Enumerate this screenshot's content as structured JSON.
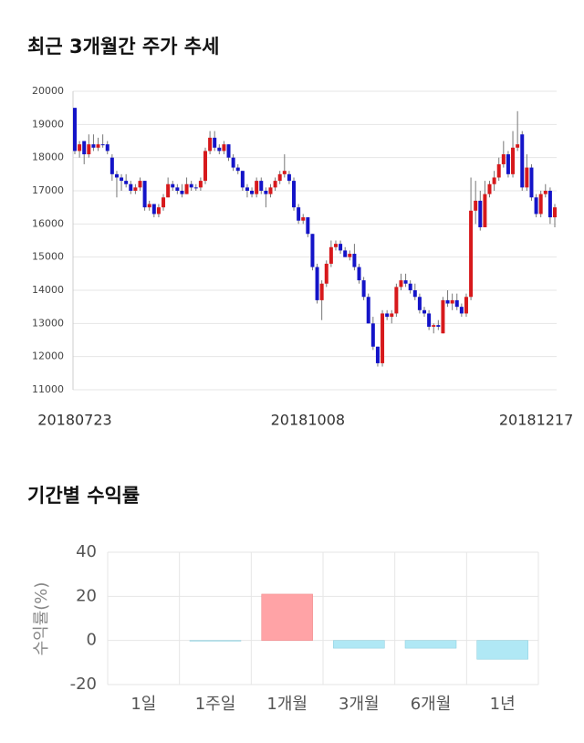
{
  "chart_data": [
    {
      "type": "candlestick",
      "title": "최근 3개월간 주가 추세",
      "categories": [
        "20180723",
        null,
        null,
        null,
        null,
        null,
        null,
        null,
        null,
        null,
        null,
        null,
        null,
        null,
        null,
        null,
        null,
        null,
        null,
        null,
        null,
        null,
        null,
        null,
        null,
        null,
        null,
        null,
        null,
        null,
        null,
        null,
        null,
        null,
        null,
        null,
        null,
        null,
        null,
        null,
        null,
        null,
        null,
        null,
        null,
        null,
        null,
        null,
        null,
        null,
        "20181008",
        null,
        null,
        null,
        null,
        null,
        null,
        null,
        null,
        null,
        null,
        null,
        null,
        null,
        null,
        null,
        null,
        null,
        null,
        null,
        null,
        null,
        null,
        null,
        null,
        null,
        null,
        null,
        null,
        null,
        null,
        null,
        null,
        null,
        null,
        null,
        null,
        null,
        null,
        null,
        null,
        null,
        null,
        null,
        null,
        null,
        null,
        null,
        null,
        "20181217",
        null,
        null,
        null,
        null
      ],
      "open": [
        19500,
        18200,
        18500,
        18100,
        18400,
        18300,
        18400,
        18400,
        18000,
        17500,
        17400,
        17300,
        17200,
        17000,
        17100,
        17300,
        16500,
        16600,
        16300,
        16500,
        16800,
        17200,
        17100,
        17000,
        16900,
        17200,
        17100,
        17100,
        17300,
        18200,
        18600,
        18300,
        18200,
        18400,
        18000,
        17700,
        17600,
        17100,
        17000,
        16900,
        17300,
        17000,
        16900,
        17100,
        17300,
        17500,
        17500,
        17300,
        16500,
        16100,
        16200,
        15700,
        14700,
        13700,
        14200,
        14800,
        15300,
        15400,
        15200,
        15000,
        15100,
        14700,
        14300,
        13800,
        13000,
        12300,
        11800,
        13300,
        13200,
        13300,
        14100,
        14300,
        14200,
        14000,
        13800,
        13400,
        13300,
        12900,
        12950,
        12700,
        13700,
        13600,
        13700,
        13500,
        13300,
        13800,
        16400,
        16700,
        15900,
        16900,
        17200,
        17400,
        17800,
        18100,
        17500,
        18300,
        18700,
        17100,
        17700,
        16800,
        16300,
        16900,
        17000,
        16200
      ],
      "high": [
        19500,
        18500,
        18500,
        18700,
        18700,
        18600,
        18700,
        18500,
        18100,
        17600,
        17500,
        17500,
        17300,
        17200,
        17400,
        17300,
        16700,
        16600,
        16600,
        16900,
        17400,
        17300,
        17200,
        17200,
        17400,
        17300,
        17200,
        17400,
        18300,
        18800,
        18800,
        18400,
        18500,
        18400,
        18100,
        17800,
        17600,
        17200,
        17100,
        17400,
        17400,
        17100,
        17200,
        17400,
        17600,
        18100,
        17600,
        17400,
        16600,
        16300,
        16200,
        15700,
        14800,
        14300,
        14900,
        15500,
        15500,
        15500,
        15300,
        15200,
        15400,
        14800,
        14400,
        13900,
        13200,
        12300,
        13400,
        13400,
        13400,
        14200,
        14500,
        14500,
        14300,
        14200,
        13900,
        13500,
        13400,
        13000,
        13100,
        13800,
        14000,
        13900,
        13900,
        13600,
        13900,
        17400,
        17300,
        17000,
        17300,
        17300,
        17600,
        18000,
        18500,
        18200,
        18800,
        19400,
        18800,
        18100,
        17800,
        16900,
        17000,
        17200,
        17100,
        16600
      ],
      "low": [
        18100,
        18000,
        17800,
        18000,
        18200,
        18200,
        18300,
        18100,
        17300,
        16800,
        17000,
        17100,
        16900,
        16900,
        17000,
        16400,
        16400,
        16200,
        16200,
        16400,
        16800,
        17000,
        16900,
        16800,
        16900,
        17000,
        17000,
        17000,
        17200,
        18100,
        18200,
        18100,
        18100,
        17900,
        17600,
        17500,
        17000,
        16800,
        16800,
        16800,
        16900,
        16500,
        16800,
        17000,
        17200,
        17400,
        17200,
        16400,
        16000,
        16000,
        15600,
        14600,
        13600,
        13100,
        14100,
        14700,
        15200,
        15100,
        15000,
        14900,
        14600,
        14200,
        13700,
        13000,
        12200,
        11700,
        11700,
        13100,
        13000,
        13200,
        14000,
        14100,
        13900,
        13700,
        13300,
        13200,
        12800,
        12700,
        12800,
        12700,
        13500,
        13400,
        13400,
        13200,
        13200,
        13700,
        16000,
        15800,
        15900,
        16800,
        17000,
        17300,
        17700,
        17400,
        17400,
        18200,
        17000,
        17000,
        16700,
        16200,
        16200,
        16800,
        16000,
        15900
      ],
      "close": [
        18200,
        18400,
        18100,
        18400,
        18300,
        18400,
        18400,
        18200,
        17500,
        17400,
        17300,
        17200,
        17000,
        17100,
        17300,
        16500,
        16600,
        16300,
        16500,
        16800,
        17200,
        17100,
        17000,
        16900,
        17200,
        17100,
        17100,
        17300,
        18200,
        18600,
        18300,
        18200,
        18400,
        18000,
        17700,
        17600,
        17100,
        17000,
        16900,
        17300,
        17000,
        16900,
        17100,
        17300,
        17500,
        17600,
        17300,
        16500,
        16100,
        16200,
        15700,
        14700,
        13700,
        14200,
        14800,
        15300,
        15400,
        15200,
        15000,
        15100,
        14700,
        14300,
        13800,
        13000,
        12300,
        11800,
        13300,
        13200,
        13300,
        14100,
        14300,
        14200,
        14000,
        13800,
        13400,
        13300,
        12900,
        12950,
        12900,
        13700,
        13600,
        13700,
        13500,
        13300,
        13800,
        16400,
        16700,
        15900,
        16900,
        17200,
        17400,
        17800,
        18100,
        17500,
        18300,
        18400,
        17100,
        17700,
        16800,
        16300,
        16900,
        17000,
        16200,
        16500
      ],
      "up_color": "#d7191c",
      "down_color": "#1414c8",
      "ylim": [
        11000,
        20000
      ],
      "yticks": [
        11000,
        12000,
        13000,
        14000,
        15000,
        16000,
        17000,
        18000,
        19000,
        20000
      ],
      "grid": true
    },
    {
      "type": "bar",
      "title": "기간별 수익률",
      "ylabel": "수익률(%)",
      "categories": [
        "1일",
        "1주일",
        "1개월",
        "3개월",
        "6개월",
        "1년"
      ],
      "values": [
        0,
        -0.3,
        21,
        -3.5,
        -3.5,
        -8.5
      ],
      "positive_color": "#ffa3a6",
      "negative_color": "#b0e8f5",
      "ylim": [
        -20,
        40
      ],
      "yticks": [
        -20,
        0,
        20,
        40
      ],
      "grid": true
    }
  ]
}
